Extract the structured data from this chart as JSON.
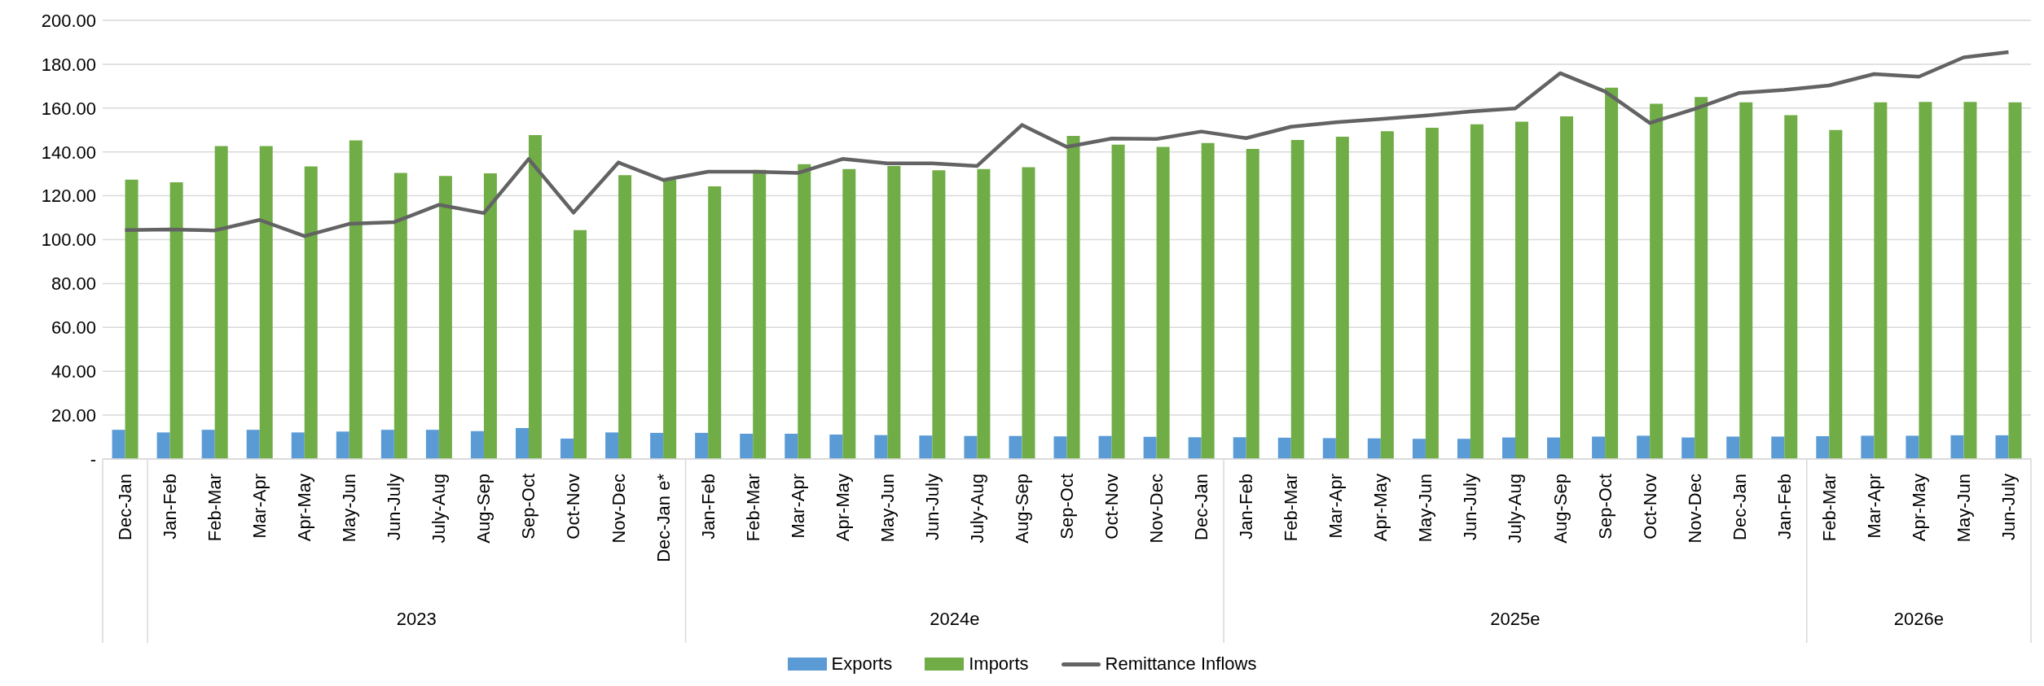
{
  "chart_data": {
    "type": "bar",
    "categories": [
      "Dec-Jan",
      "Jan-Feb",
      "Feb-Mar",
      "Mar-Apr",
      "Apr-May",
      "May-Jun",
      "Jun-July",
      "July-Aug",
      "Aug-Sep",
      "Sep-Oct",
      "Oct-Nov",
      "Nov-Dec",
      "Dec-Jan e*",
      "Jan-Feb",
      "Feb-Mar",
      "Mar-Apr",
      "Apr-May",
      "May-Jun",
      "Jun-July",
      "July-Aug",
      "Aug-Sep",
      "Sep-Oct",
      "Oct-Nov",
      "Nov-Dec",
      "Dec-Jan",
      "Jan-Feb",
      "Feb-Mar",
      "Mar-Apr",
      "Apr-May",
      "May-Jun",
      "Jun-July",
      "July-Aug",
      "Aug-Sep",
      "Sep-Oct",
      "Oct-Nov",
      "Nov-Dec",
      "Dec-Jan",
      "Jan-Feb",
      "Feb-Mar",
      "Mar-Apr",
      "Apr-May",
      "May-Jun",
      "Jun-July"
    ],
    "series": [
      {
        "name": "Exports",
        "color": "#5b9bd5",
        "values": [
          13.3,
          12.1,
          13.3,
          13.3,
          12.1,
          12.5,
          13.3,
          13.3,
          12.7,
          14.1,
          9.3,
          12.1,
          11.9,
          11.9,
          11.5,
          11.5,
          11.1,
          10.9,
          10.7,
          10.5,
          10.5,
          10.3,
          10.5,
          10.1,
          9.9,
          9.9,
          9.7,
          9.5,
          9.4,
          9.2,
          9.2,
          9.8,
          9.8,
          10.2,
          10.6,
          9.8,
          10.2,
          10.2,
          10.4,
          10.6,
          10.6,
          10.8,
          10.8
        ]
      },
      {
        "name": "Imports",
        "color": "#70ad47",
        "values": [
          127.4,
          126.2,
          142.7,
          142.7,
          133.4,
          145.3,
          130.4,
          129,
          130.2,
          147.7,
          104.4,
          129.4,
          127.4,
          124.3,
          131.8,
          134.4,
          132.2,
          133.6,
          131.6,
          132.2,
          133,
          147.3,
          143.3,
          142.3,
          144.1,
          141.4,
          145.5,
          146.9,
          149.4,
          151,
          152.6,
          153.8,
          156.2,
          169.3,
          162,
          165,
          162.6,
          156.8,
          150,
          162.6,
          162.8,
          162.8,
          162.6
        ]
      },
      {
        "name": "Remittance Inflows",
        "type": "line",
        "color": "#636363",
        "values": [
          104.4,
          104.6,
          104.2,
          109,
          101.6,
          107.2,
          108,
          115.9,
          112.1,
          136.8,
          112.3,
          135.2,
          127.2,
          131,
          131,
          130.4,
          136.8,
          134.8,
          134.8,
          133.6,
          152.3,
          142.3,
          146.1,
          145.9,
          149.3,
          146.3,
          151.5,
          153.5,
          155,
          156.6,
          158.4,
          159.8,
          175.9,
          167.6,
          153.2,
          159.6,
          166.9,
          168.3,
          170.3,
          175.5,
          174.3,
          183.1,
          185.5
        ]
      }
    ],
    "ylim": [
      0,
      200
    ],
    "yticks": [
      {
        "value": 0,
        "label": "-"
      },
      {
        "value": 20,
        "label": "20.00"
      },
      {
        "value": 40,
        "label": "40.00"
      },
      {
        "value": 60,
        "label": "60.00"
      },
      {
        "value": 80,
        "label": "80.00"
      },
      {
        "value": 100,
        "label": "100.00"
      },
      {
        "value": 120,
        "label": "120.00"
      },
      {
        "value": 140,
        "label": "140.00"
      },
      {
        "value": 160,
        "label": "160.00"
      },
      {
        "value": 180,
        "label": "180.00"
      },
      {
        "value": 200,
        "label": "200.00"
      }
    ],
    "annotations": [
      "2023",
      "2024e",
      "2025e",
      "2026e"
    ],
    "grid": "y",
    "legend": "bottom",
    "marker": "none",
    "line_style": "solid"
  }
}
